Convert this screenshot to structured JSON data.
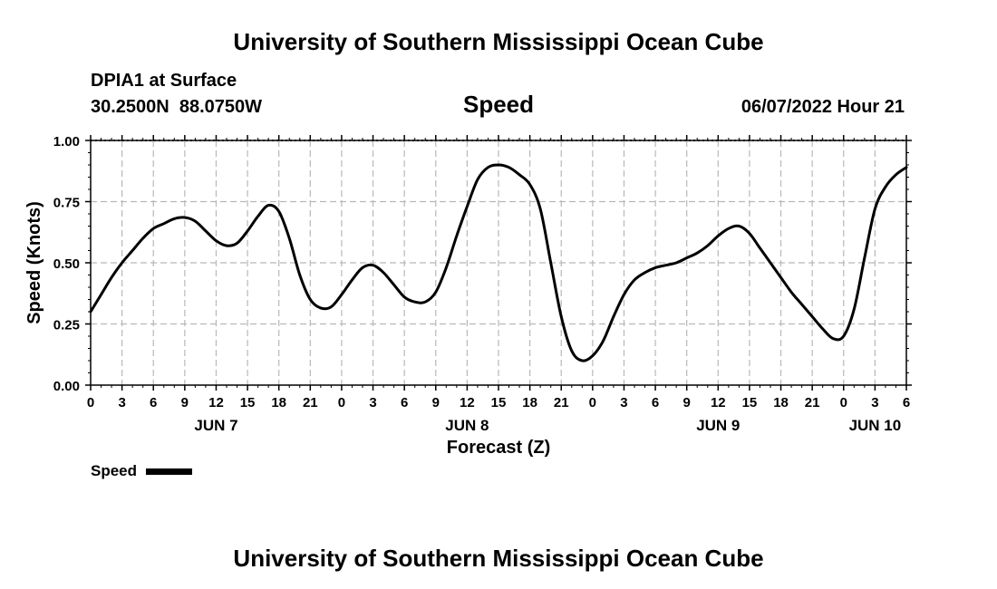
{
  "header": {
    "title": "University of Southern Mississippi Ocean Cube",
    "station": "DPIA1 at Surface",
    "coords": "30.2500N  88.0750W",
    "timestamp": "06/07/2022 Hour 21"
  },
  "footer": {
    "title": "University of Southern Mississippi Ocean Cube"
  },
  "legend": {
    "label": "Speed",
    "color": "#000000"
  },
  "chart_data": {
    "type": "line",
    "title": "Speed",
    "xlabel": "Forecast (Z)",
    "ylabel": "Speed (Knots)",
    "ylim": [
      0,
      1
    ],
    "xlim": [
      0,
      78
    ],
    "grid": true,
    "legend_position": "bottom-left",
    "yticks": [
      0,
      0.25,
      0.5,
      0.75,
      1.0
    ],
    "ytick_labels": [
      "0.00",
      "0.25",
      "0.50",
      "0.75",
      "1.00"
    ],
    "xticks": [
      0,
      3,
      6,
      9,
      12,
      15,
      18,
      21,
      24,
      27,
      30,
      33,
      36,
      39,
      42,
      45,
      48,
      51,
      54,
      57,
      60,
      63,
      66,
      69,
      72,
      75,
      78
    ],
    "xtick_labels": [
      "0",
      "3",
      "6",
      "9",
      "12",
      "15",
      "18",
      "21",
      "0",
      "3",
      "6",
      "9",
      "12",
      "15",
      "18",
      "21",
      "0",
      "3",
      "6",
      "9",
      "12",
      "15",
      "18",
      "21",
      "0",
      "3",
      "6"
    ],
    "day_labels": [
      {
        "label": "JUN 7",
        "x": 12
      },
      {
        "label": "JUN 8",
        "x": 36
      },
      {
        "label": "JUN 9",
        "x": 60
      },
      {
        "label": "JUN 10",
        "x": 75
      }
    ],
    "series": [
      {
        "name": "Speed",
        "color": "#000000",
        "x": [
          0,
          1,
          2,
          3,
          4,
          5,
          6,
          7,
          8,
          9,
          10,
          11,
          12,
          13,
          14,
          15,
          16,
          17,
          18,
          19,
          20,
          21,
          22,
          23,
          24,
          25,
          26,
          27,
          28,
          29,
          30,
          31,
          32,
          33,
          34,
          35,
          36,
          37,
          38,
          39,
          40,
          41,
          42,
          43,
          44,
          45,
          46,
          47,
          48,
          49,
          50,
          51,
          52,
          53,
          54,
          55,
          56,
          57,
          58,
          59,
          60,
          61,
          62,
          63,
          64,
          65,
          66,
          67,
          68,
          69,
          70,
          71,
          72,
          73,
          74,
          75,
          76,
          77,
          78
        ],
        "values": [
          0.3,
          0.37,
          0.44,
          0.5,
          0.55,
          0.6,
          0.64,
          0.66,
          0.68,
          0.685,
          0.67,
          0.63,
          0.59,
          0.57,
          0.58,
          0.63,
          0.69,
          0.735,
          0.71,
          0.6,
          0.45,
          0.35,
          0.315,
          0.32,
          0.37,
          0.43,
          0.48,
          0.49,
          0.46,
          0.41,
          0.36,
          0.34,
          0.34,
          0.38,
          0.48,
          0.61,
          0.73,
          0.84,
          0.89,
          0.9,
          0.89,
          0.86,
          0.82,
          0.72,
          0.5,
          0.28,
          0.14,
          0.1,
          0.12,
          0.18,
          0.28,
          0.37,
          0.43,
          0.46,
          0.48,
          0.49,
          0.5,
          0.52,
          0.54,
          0.57,
          0.61,
          0.64,
          0.65,
          0.62,
          0.56,
          0.5,
          0.44,
          0.38,
          0.33,
          0.28,
          0.23,
          0.19,
          0.2,
          0.31,
          0.52,
          0.72,
          0.81,
          0.86,
          0.89
        ]
      }
    ]
  }
}
